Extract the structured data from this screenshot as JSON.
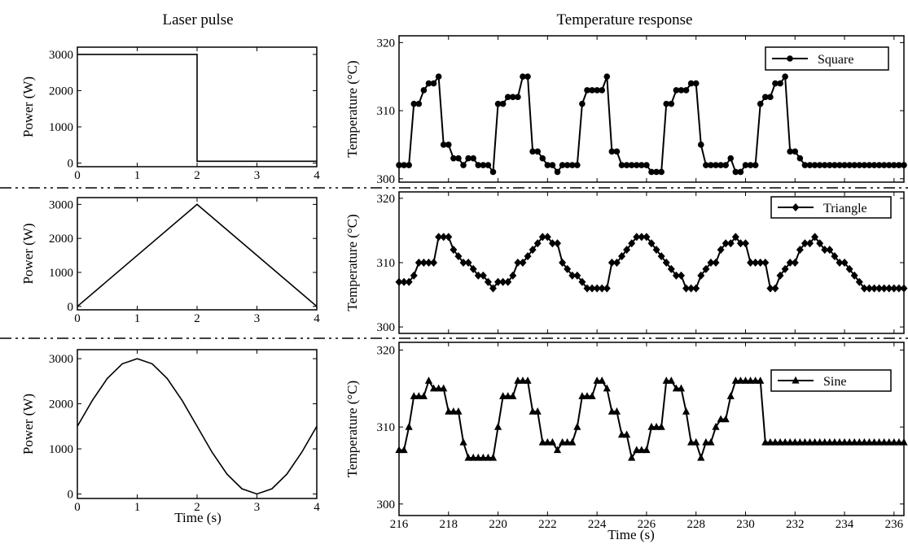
{
  "titles": {
    "left": "Laser pulse",
    "right": "Temperature response"
  },
  "labels": {
    "left_ylabel": "Power (W)",
    "right_ylabel": "Temperature (°C)",
    "left_xlabel": "Time (s)",
    "right_xlabel": "Time (s)"
  },
  "chart_data": [
    {
      "type": "line",
      "title": "Laser pulse",
      "waveform": "square",
      "xlabel": "",
      "ylabel": "Power (W)",
      "xlim": [
        0,
        4
      ],
      "ylim": [
        -100,
        3200
      ],
      "xticks": [
        0,
        1,
        2,
        3,
        4
      ],
      "yticks": [
        0,
        1000,
        2000,
        3000
      ],
      "x": [
        0,
        2,
        2,
        4
      ],
      "y": [
        3000,
        3000,
        50,
        50
      ]
    },
    {
      "type": "line",
      "waveform": "triangle",
      "xlabel": "",
      "ylabel": "Power (W)",
      "xlim": [
        0,
        4
      ],
      "ylim": [
        -100,
        3200
      ],
      "xticks": [
        0,
        1,
        2,
        3,
        4
      ],
      "yticks": [
        0,
        1000,
        2000,
        3000
      ],
      "x": [
        0,
        2,
        4
      ],
      "y": [
        0,
        3000,
        0
      ]
    },
    {
      "type": "line",
      "waveform": "sine",
      "xlabel": "Time (s)",
      "ylabel": "Power (W)",
      "xlim": [
        0,
        4
      ],
      "ylim": [
        -100,
        3200
      ],
      "xticks": [
        0,
        1,
        2,
        3,
        4
      ],
      "yticks": [
        0,
        1000,
        2000,
        3000
      ],
      "x": [
        0,
        0.25,
        0.5,
        0.75,
        1,
        1.25,
        1.5,
        1.75,
        2,
        2.25,
        2.5,
        2.75,
        3,
        3.25,
        3.5,
        3.75,
        4
      ],
      "y": [
        1500,
        2074,
        2561,
        2886,
        3000,
        2886,
        2561,
        2074,
        1500,
        926,
        439,
        114,
        0,
        114,
        439,
        926,
        1500
      ]
    },
    {
      "type": "line",
      "title": "Temperature response",
      "xlabel": "",
      "ylabel": "Temperature (°C)",
      "xlim": [
        216,
        236.4
      ],
      "ylim": [
        299.5,
        321
      ],
      "xticks": [
        216,
        218,
        220,
        222,
        224,
        226,
        228,
        230,
        232,
        234,
        236
      ],
      "yticks": [
        300,
        310,
        320
      ],
      "legend": "top-right",
      "series": [
        {
          "name": "Square",
          "marker": "circle",
          "x": [
            216.0,
            216.2,
            216.4,
            216.6,
            216.8,
            217.0,
            217.2,
            217.4,
            217.6,
            217.8,
            218.0,
            218.2,
            218.4,
            218.6,
            218.8,
            219.0,
            219.2,
            219.4,
            219.6,
            219.8,
            220.0,
            220.2,
            220.4,
            220.6,
            220.8,
            221.0,
            221.2,
            221.4,
            221.6,
            221.8,
            222.0,
            222.2,
            222.4,
            222.6,
            222.8,
            223.0,
            223.2,
            223.4,
            223.6,
            223.8,
            224.0,
            224.2,
            224.4,
            224.6,
            224.8,
            225.0,
            225.2,
            225.4,
            225.6,
            225.8,
            226.0,
            226.2,
            226.4,
            226.6,
            226.8,
            227.0,
            227.2,
            227.4,
            227.6,
            227.8,
            228.0,
            228.2,
            228.4,
            228.6,
            228.8,
            229.0,
            229.2,
            229.4,
            229.6,
            229.8,
            230.0,
            230.2,
            230.4,
            230.6,
            230.8,
            231.0,
            231.2,
            231.4,
            231.6,
            231.8,
            232.0,
            232.2,
            232.4,
            232.6,
            232.8,
            233.0,
            233.2,
            233.4,
            233.6,
            233.8,
            234.0,
            234.2,
            234.4,
            234.6,
            234.8,
            235.0,
            235.2,
            235.4,
            235.6,
            235.8,
            236.0,
            236.2,
            236.4
          ],
          "y": [
            302,
            302,
            302,
            311,
            311,
            313,
            314,
            314,
            315,
            305,
            305,
            303,
            303,
            302,
            303,
            303,
            302,
            302,
            302,
            301,
            311,
            311,
            312,
            312,
            312,
            315,
            315,
            304,
            304,
            303,
            302,
            302,
            301,
            302,
            302,
            302,
            302,
            311,
            313,
            313,
            313,
            313,
            315,
            304,
            304,
            302,
            302,
            302,
            302,
            302,
            302,
            301,
            301,
            301,
            311,
            311,
            313,
            313,
            313,
            314,
            314,
            305,
            302,
            302,
            302,
            302,
            302,
            303,
            301,
            301,
            302,
            302,
            302,
            311,
            312,
            312,
            314,
            314,
            315,
            304,
            304,
            303,
            302,
            302,
            302,
            302,
            302,
            302,
            302,
            302,
            302,
            302,
            302,
            302,
            302,
            302,
            302,
            302,
            302,
            302,
            302,
            302,
            302
          ]
        }
      ]
    },
    {
      "type": "line",
      "xlabel": "",
      "ylabel": "Temperature (°C)",
      "xlim": [
        216,
        236.4
      ],
      "ylim": [
        299,
        321
      ],
      "xticks": [
        216,
        218,
        220,
        222,
        224,
        226,
        228,
        230,
        232,
        234,
        236
      ],
      "yticks": [
        300,
        310,
        320
      ],
      "legend": "top-right",
      "series": [
        {
          "name": "Triangle",
          "marker": "diamond",
          "x": [
            216.0,
            216.2,
            216.4,
            216.6,
            216.8,
            217.0,
            217.2,
            217.4,
            217.6,
            217.8,
            218.0,
            218.2,
            218.4,
            218.6,
            218.8,
            219.0,
            219.2,
            219.4,
            219.6,
            219.8,
            220.0,
            220.2,
            220.4,
            220.6,
            220.8,
            221.0,
            221.2,
            221.4,
            221.6,
            221.8,
            222.0,
            222.2,
            222.4,
            222.6,
            222.8,
            223.0,
            223.2,
            223.4,
            223.6,
            223.8,
            224.0,
            224.2,
            224.4,
            224.6,
            224.8,
            225.0,
            225.2,
            225.4,
            225.6,
            225.8,
            226.0,
            226.2,
            226.4,
            226.6,
            226.8,
            227.0,
            227.2,
            227.4,
            227.6,
            227.8,
            228.0,
            228.2,
            228.4,
            228.6,
            228.8,
            229.0,
            229.2,
            229.4,
            229.6,
            229.8,
            230.0,
            230.2,
            230.4,
            230.6,
            230.8,
            231.0,
            231.2,
            231.4,
            231.6,
            231.8,
            232.0,
            232.2,
            232.4,
            232.6,
            232.8,
            233.0,
            233.2,
            233.4,
            233.6,
            233.8,
            234.0,
            234.2,
            234.4,
            234.6,
            234.8,
            235.0,
            235.2,
            235.4,
            235.6,
            235.8,
            236.0,
            236.2,
            236.4
          ],
          "y": [
            307,
            307,
            307,
            308,
            310,
            310,
            310,
            310,
            314,
            314,
            314,
            312,
            311,
            310,
            310,
            309,
            308,
            308,
            307,
            306,
            307,
            307,
            307,
            308,
            310,
            310,
            311,
            312,
            313,
            314,
            314,
            313,
            313,
            310,
            309,
            308,
            308,
            307,
            306,
            306,
            306,
            306,
            306,
            310,
            310,
            311,
            312,
            313,
            314,
            314,
            314,
            313,
            312,
            311,
            310,
            309,
            308,
            308,
            306,
            306,
            306,
            308,
            309,
            310,
            310,
            312,
            313,
            313,
            314,
            313,
            313,
            310,
            310,
            310,
            310,
            306,
            306,
            308,
            309,
            310,
            310,
            312,
            313,
            313,
            314,
            313,
            312,
            312,
            311,
            310,
            310,
            309,
            308,
            307,
            306,
            306,
            306,
            306,
            306,
            306,
            306,
            306,
            306
          ]
        }
      ]
    },
    {
      "type": "line",
      "xlabel": "Time (s)",
      "ylabel": "Temperature (°C)",
      "xlim": [
        216,
        236.4
      ],
      "ylim": [
        298.5,
        321
      ],
      "xticks": [
        216,
        218,
        220,
        222,
        224,
        226,
        228,
        230,
        232,
        234,
        236
      ],
      "yticks": [
        300,
        310,
        320
      ],
      "legend": "top-right",
      "series": [
        {
          "name": "Sine",
          "marker": "triangle",
          "x": [
            216.0,
            216.2,
            216.4,
            216.6,
            216.8,
            217.0,
            217.2,
            217.4,
            217.6,
            217.8,
            218.0,
            218.2,
            218.4,
            218.6,
            218.8,
            219.0,
            219.2,
            219.4,
            219.6,
            219.8,
            220.0,
            220.2,
            220.4,
            220.6,
            220.8,
            221.0,
            221.2,
            221.4,
            221.6,
            221.8,
            222.0,
            222.2,
            222.4,
            222.6,
            222.8,
            223.0,
            223.2,
            223.4,
            223.6,
            223.8,
            224.0,
            224.2,
            224.4,
            224.6,
            224.8,
            225.0,
            225.2,
            225.4,
            225.6,
            225.8,
            226.0,
            226.2,
            226.4,
            226.6,
            226.8,
            227.0,
            227.2,
            227.4,
            227.6,
            227.8,
            228.0,
            228.2,
            228.4,
            228.6,
            228.8,
            229.0,
            229.2,
            229.4,
            229.6,
            229.8,
            230.0,
            230.2,
            230.4,
            230.6,
            230.8,
            231.0,
            231.2,
            231.4,
            231.6,
            231.8,
            232.0,
            232.2,
            232.4,
            232.6,
            232.8,
            233.0,
            233.2,
            233.4,
            233.6,
            233.8,
            234.0,
            234.2,
            234.4,
            234.6,
            234.8,
            235.0,
            235.2,
            235.4,
            235.6,
            235.8,
            236.0,
            236.2,
            236.4
          ],
          "y": [
            307,
            307,
            310,
            314,
            314,
            314,
            316,
            315,
            315,
            315,
            312,
            312,
            312,
            308,
            306,
            306,
            306,
            306,
            306,
            306,
            310,
            314,
            314,
            314,
            316,
            316,
            316,
            312,
            312,
            308,
            308,
            308,
            307,
            308,
            308,
            308,
            310,
            314,
            314,
            314,
            316,
            316,
            315,
            312,
            312,
            309,
            309,
            306,
            307,
            307,
            307,
            310,
            310,
            310,
            316,
            316,
            315,
            315,
            312,
            308,
            308,
            306,
            308,
            308,
            310,
            311,
            311,
            314,
            316,
            316,
            316,
            316,
            316,
            316,
            308,
            308,
            308,
            308,
            308,
            308,
            308,
            308,
            308,
            308,
            308,
            308,
            308,
            308,
            308,
            308,
            308,
            308,
            308,
            308,
            308,
            308,
            308,
            308,
            308,
            308,
            308,
            308,
            308
          ]
        }
      ]
    }
  ]
}
